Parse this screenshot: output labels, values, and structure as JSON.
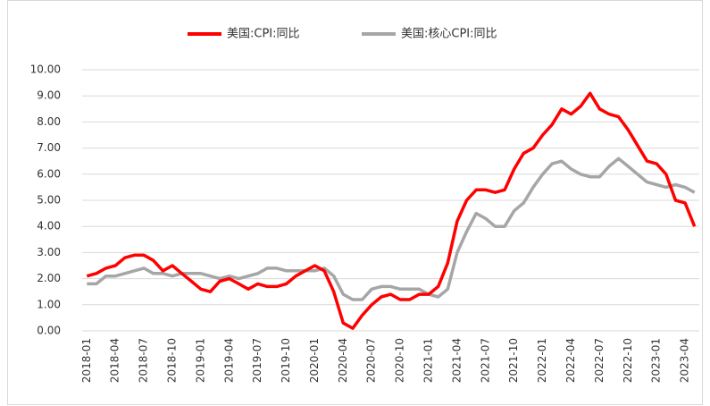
{
  "chart_data": {
    "type": "line",
    "categories": [
      "2018-01",
      null,
      null,
      "2018-04",
      null,
      null,
      "2018-07",
      null,
      null,
      "2018-10",
      null,
      null,
      "2019-01",
      null,
      null,
      "2019-04",
      null,
      null,
      "2019-07",
      null,
      null,
      "2019-10",
      null,
      null,
      "2020-01",
      null,
      null,
      "2020-04",
      null,
      null,
      "2020-07",
      null,
      null,
      "2020-10",
      null,
      null,
      "2021-01",
      null,
      null,
      "2021-04",
      null,
      null,
      "2021-07",
      null,
      null,
      "2021-10",
      null,
      null,
      "2022-01",
      null,
      null,
      "2022-04",
      null,
      null,
      "2022-07",
      null,
      null,
      "2022-10",
      null,
      null,
      "2023-01",
      null,
      null,
      "2023-04",
      null
    ],
    "series": [
      {
        "name": "美国:CPI:同比",
        "color": "#ff0000",
        "values": [
          2.1,
          2.2,
          2.4,
          2.5,
          2.8,
          2.9,
          2.9,
          2.7,
          2.3,
          2.5,
          2.2,
          1.9,
          1.6,
          1.5,
          1.9,
          2.0,
          1.8,
          1.6,
          1.8,
          1.7,
          1.7,
          1.8,
          2.1,
          2.3,
          2.5,
          2.3,
          1.5,
          0.3,
          0.1,
          0.6,
          1.0,
          1.3,
          1.4,
          1.2,
          1.2,
          1.4,
          1.4,
          1.7,
          2.6,
          4.2,
          5.0,
          5.4,
          5.4,
          5.3,
          5.4,
          6.2,
          6.8,
          7.0,
          7.5,
          7.9,
          8.5,
          8.3,
          8.6,
          9.1,
          8.5,
          8.3,
          8.2,
          7.7,
          7.1,
          6.5,
          6.4,
          6.0,
          5.0,
          4.9,
          4.0
        ]
      },
      {
        "name": "美国:核心CPI:同比",
        "color": "#a6a6a6",
        "values": [
          1.8,
          1.8,
          2.1,
          2.1,
          2.2,
          2.3,
          2.4,
          2.2,
          2.2,
          2.1,
          2.2,
          2.2,
          2.2,
          2.1,
          2.0,
          2.1,
          2.0,
          2.1,
          2.2,
          2.4,
          2.4,
          2.3,
          2.3,
          2.3,
          2.3,
          2.4,
          2.1,
          1.4,
          1.2,
          1.2,
          1.6,
          1.7,
          1.7,
          1.6,
          1.6,
          1.6,
          1.4,
          1.3,
          1.6,
          3.0,
          3.8,
          4.5,
          4.3,
          4.0,
          4.0,
          4.6,
          4.9,
          5.5,
          6.0,
          6.4,
          6.5,
          6.2,
          6.0,
          5.9,
          5.9,
          6.3,
          6.6,
          6.3,
          6.0,
          5.7,
          5.6,
          5.5,
          5.6,
          5.5,
          5.3
        ]
      }
    ],
    "ylim": [
      0,
      10
    ],
    "yticks": [
      {
        "value": 0,
        "label": "0.00"
      },
      {
        "value": 1,
        "label": "1.00"
      },
      {
        "value": 2,
        "label": "2.00"
      },
      {
        "value": 3,
        "label": "3.00"
      },
      {
        "value": 4,
        "label": "4.00"
      },
      {
        "value": 5,
        "label": "5.00"
      },
      {
        "value": 6,
        "label": "6.00"
      },
      {
        "value": 7,
        "label": "7.00"
      },
      {
        "value": 8,
        "label": "8.00"
      },
      {
        "value": 9,
        "label": "9.00"
      },
      {
        "value": 10,
        "label": "10.00"
      }
    ],
    "grid": true,
    "legend": "top"
  }
}
